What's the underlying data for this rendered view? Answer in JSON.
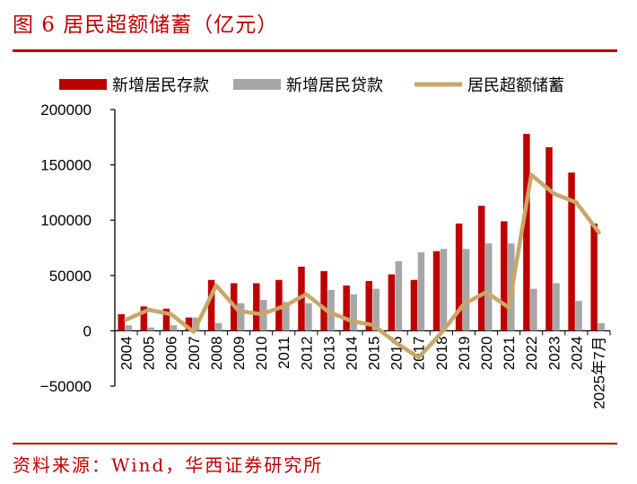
{
  "title": "图 6  居民超额储蓄（亿元）",
  "source": "资料来源：Wind，华西证券研究所",
  "colors": {
    "deposits": "#c00000",
    "loans": "#a6a6a6",
    "excess": "#c9a66b",
    "accent": "#c00000"
  },
  "chart_data": {
    "type": "bar",
    "title": "居民超额储蓄（亿元）",
    "xlabel": "",
    "ylabel": "",
    "ylim": [
      -50000,
      200000
    ],
    "yticks": [
      200000,
      150000,
      100000,
      50000,
      0,
      -50000
    ],
    "ytick_labels": [
      "200000",
      "150000",
      "100000",
      "50000",
      "0",
      "−50000"
    ],
    "categories": [
      "2004",
      "2005",
      "2006",
      "2007",
      "2008",
      "2009",
      "2010",
      "2011",
      "2012",
      "2013",
      "2014",
      "2015",
      "2016",
      "2017",
      "2018",
      "2019",
      "2020",
      "2021",
      "2022",
      "2023",
      "2024",
      "2025年7月"
    ],
    "series": [
      {
        "name": "新增居民存款",
        "kind": "bar",
        "color": "#c00000",
        "values": [
          15000,
          22000,
          20000,
          12000,
          46000,
          43000,
          43000,
          46000,
          58000,
          54000,
          41000,
          45000,
          51000,
          46000,
          72000,
          97000,
          113000,
          99000,
          178000,
          166000,
          143000,
          97000
        ]
      },
      {
        "name": "新增居民贷款",
        "kind": "bar",
        "color": "#a6a6a6",
        "values": [
          5000,
          3000,
          5000,
          12000,
          7000,
          25000,
          28000,
          26000,
          25000,
          37000,
          33000,
          38000,
          63000,
          71000,
          74000,
          74000,
          79000,
          79000,
          38000,
          43000,
          27000,
          7000
        ]
      },
      {
        "name": "居民超额储蓄",
        "kind": "line",
        "color": "#c9a66b",
        "values": [
          10000,
          19000,
          15000,
          -1000,
          41000,
          18000,
          15000,
          22000,
          33000,
          17000,
          9000,
          5000,
          -11000,
          -24000,
          -2000,
          24000,
          35000,
          21000,
          141000,
          124000,
          116000,
          89000
        ]
      }
    ],
    "legend_position": "top"
  }
}
